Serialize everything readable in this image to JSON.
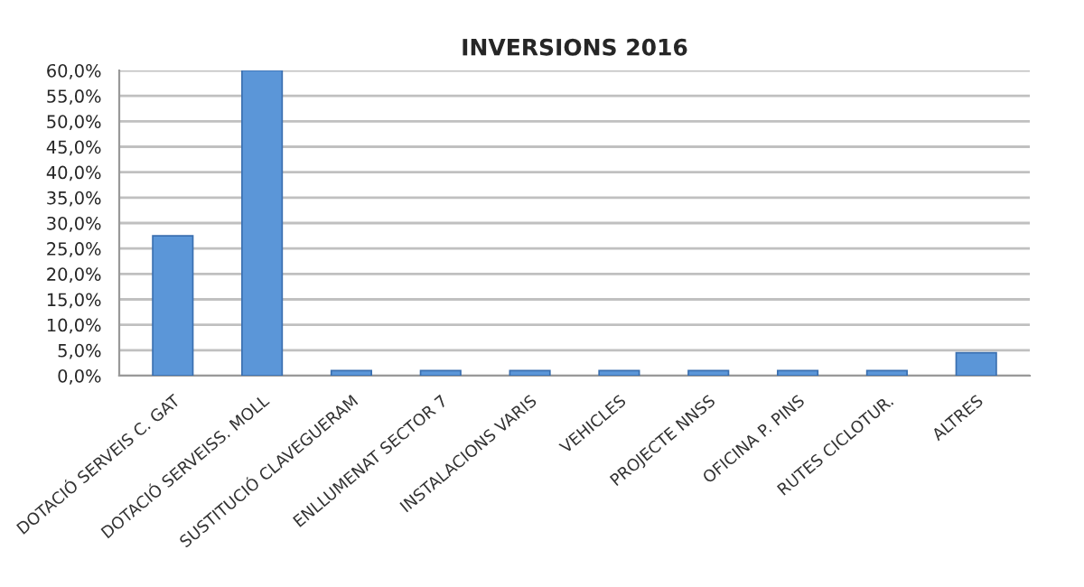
{
  "chart_data": {
    "type": "bar",
    "title": "INVERSIONS 2016",
    "categories": [
      "DOTACIÓ SERVEIS C. GAT",
      "DOTACIÓ SERVEISS. MOLL",
      "SUSTITUCIÓ CLAVEGUERAM",
      "ENLLUMENAT SECTOR 7",
      "INSTALACIONS VARIS",
      "VEHICLES",
      "PROJECTE NNSS",
      "OFICINA P. PINS",
      "RUTES CICLOTUR.",
      "ALTRES"
    ],
    "values": [
      27.5,
      60,
      1,
      1,
      1,
      1,
      1,
      1,
      1,
      4.5
    ],
    "color": "#5b96d8",
    "ylim": [
      0,
      60
    ],
    "yticks": [
      {
        "value": 0,
        "label": "0,0%"
      },
      {
        "value": 5,
        "label": "5,0%"
      },
      {
        "value": 10,
        "label": "10,0%"
      },
      {
        "value": 15,
        "label": "15,0%"
      },
      {
        "value": 20,
        "label": "20,0%"
      },
      {
        "value": 25,
        "label": "25,0%"
      },
      {
        "value": 30,
        "label": "30,0%"
      },
      {
        "value": 35,
        "label": "35,0%"
      },
      {
        "value": 40,
        "label": "40,0%"
      },
      {
        "value": 45,
        "label": "45,0%"
      },
      {
        "value": 50,
        "label": "50,0%"
      },
      {
        "value": 55,
        "label": "55,0%"
      },
      {
        "value": 60,
        "label": "60,0%"
      }
    ],
    "grid": "y"
  }
}
